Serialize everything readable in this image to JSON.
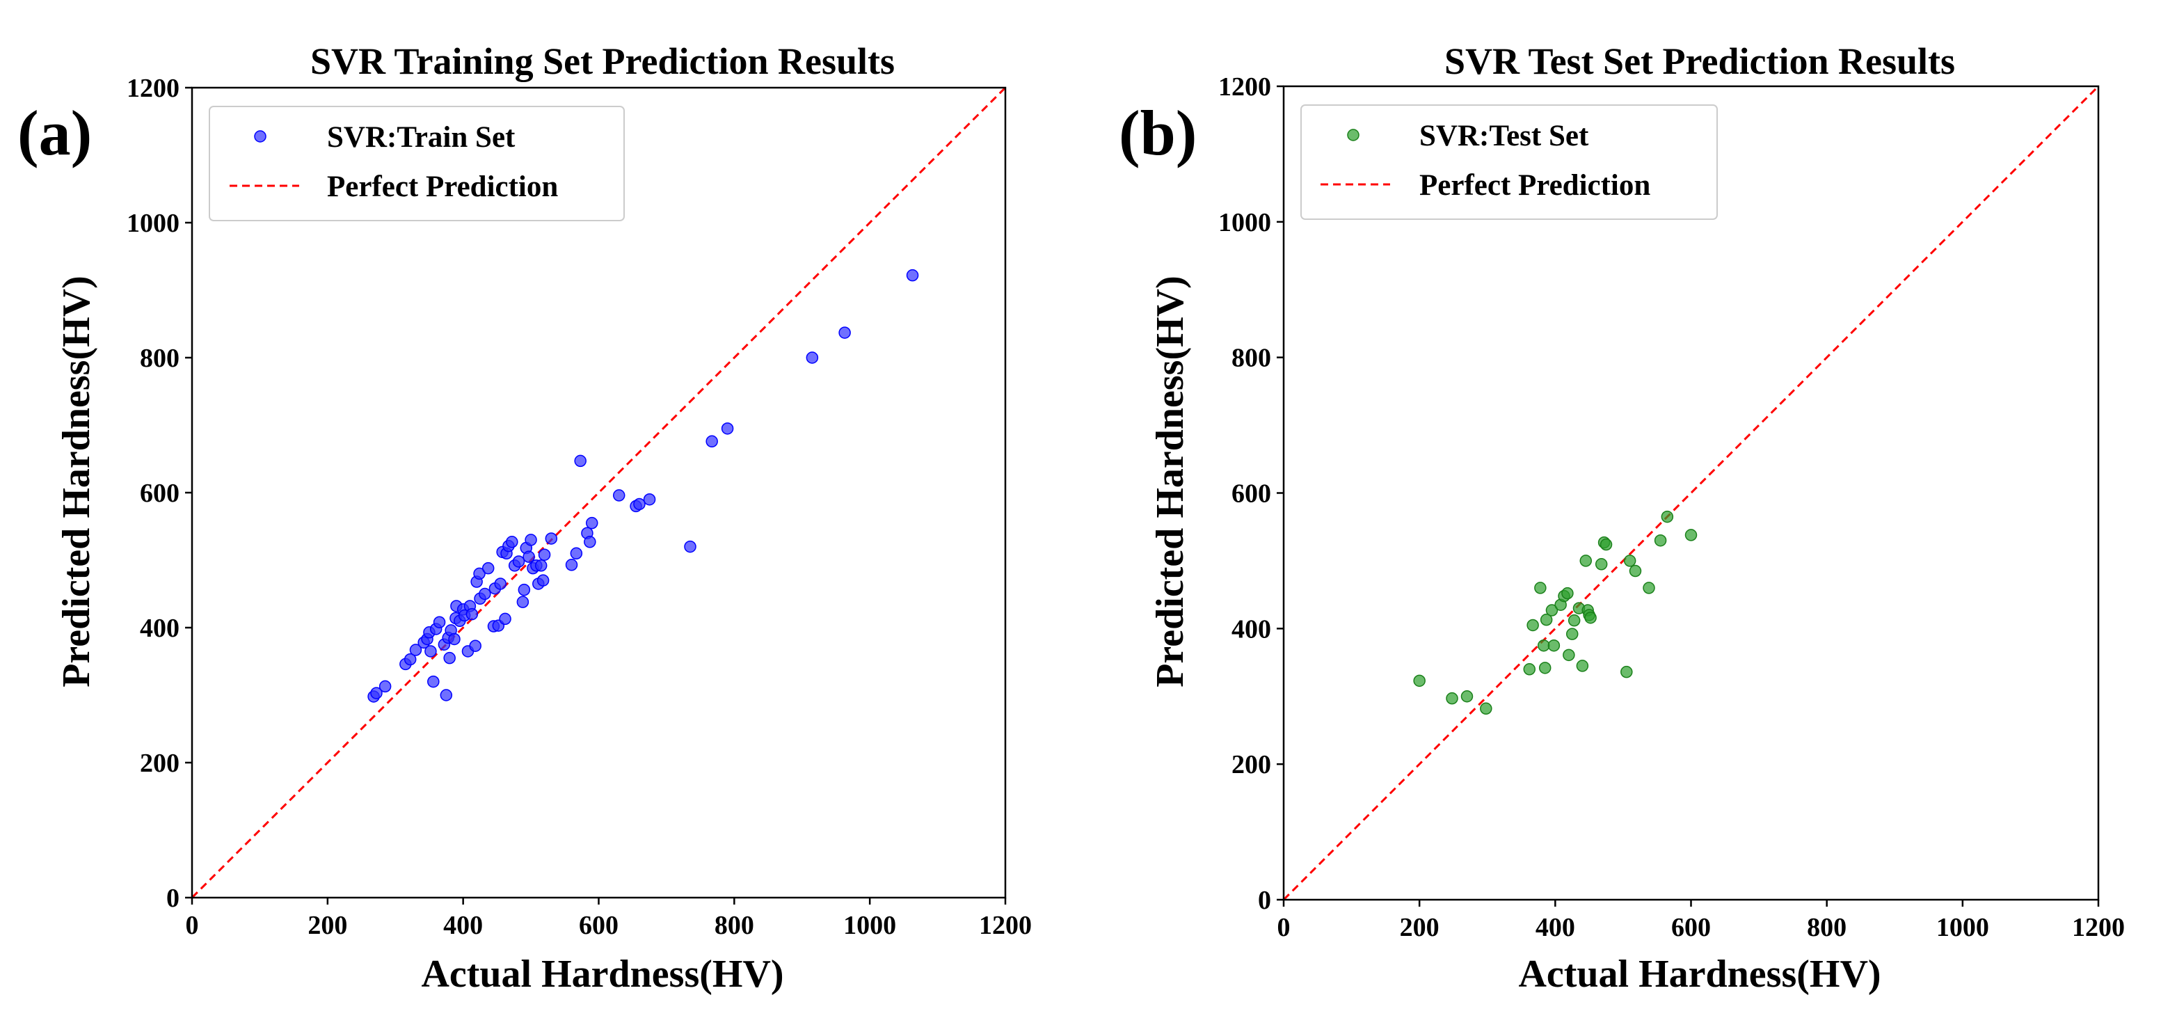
{
  "chart_data": [
    {
      "type": "scatter",
      "panel_label": "(a)",
      "title": "SVR Training Set Prediction Results",
      "xlabel": "Actual Hardness(HV)",
      "ylabel": "Predicted Hardness(HV)",
      "xlim": [
        0,
        1200
      ],
      "ylim": [
        0,
        1200
      ],
      "xticks": [
        "0",
        "200",
        "400",
        "600",
        "800",
        "1000",
        "1200"
      ],
      "yticks": [
        "0",
        "200",
        "400",
        "600",
        "800",
        "1000",
        "1200"
      ],
      "grid": false,
      "legend_position": "top-left",
      "legend": [
        "SVR:Train Set",
        "Perfect Prediction"
      ],
      "series": [
        {
          "name": "SVR:Train Set",
          "color": "#3333ff",
          "points": [
            [
              268,
              298
            ],
            [
              272,
              303
            ],
            [
              285,
              313
            ],
            [
              315,
              346
            ],
            [
              322,
              353
            ],
            [
              330,
              367
            ],
            [
              342,
              378
            ],
            [
              347,
              383
            ],
            [
              350,
              393
            ],
            [
              352,
              365
            ],
            [
              356,
              320
            ],
            [
              360,
              398
            ],
            [
              365,
              408
            ],
            [
              372,
              375
            ],
            [
              375,
              300
            ],
            [
              378,
              385
            ],
            [
              380,
              355
            ],
            [
              382,
              396
            ],
            [
              387,
              383
            ],
            [
              389,
              414
            ],
            [
              390,
              432
            ],
            [
              395,
              410
            ],
            [
              400,
              427
            ],
            [
              402,
              418
            ],
            [
              407,
              365
            ],
            [
              410,
              432
            ],
            [
              413,
              420
            ],
            [
              418,
              373
            ],
            [
              420,
              468
            ],
            [
              424,
              480
            ],
            [
              425,
              443
            ],
            [
              432,
              450
            ],
            [
              437,
              488
            ],
            [
              445,
              402
            ],
            [
              447,
              458
            ],
            [
              452,
              403
            ],
            [
              455,
              465
            ],
            [
              458,
              512
            ],
            [
              462,
              413
            ],
            [
              464,
              510
            ],
            [
              467,
              521
            ],
            [
              472,
              527
            ],
            [
              476,
              492
            ],
            [
              482,
              498
            ],
            [
              488,
              438
            ],
            [
              490,
              456
            ],
            [
              493,
              518
            ],
            [
              497,
              505
            ],
            [
              500,
              530
            ],
            [
              503,
              488
            ],
            [
              508,
              492
            ],
            [
              511,
              465
            ],
            [
              515,
              492
            ],
            [
              518,
              470
            ],
            [
              520,
              508
            ],
            [
              530,
              532
            ],
            [
              560,
              493
            ],
            [
              567,
              510
            ],
            [
              573,
              647
            ],
            [
              583,
              540
            ],
            [
              587,
              527
            ],
            [
              590,
              555
            ],
            [
              630,
              596
            ],
            [
              655,
              580
            ],
            [
              660,
              583
            ],
            [
              675,
              590
            ],
            [
              735,
              520
            ],
            [
              767,
              676
            ],
            [
              790,
              695
            ],
            [
              915,
              800
            ],
            [
              963,
              837
            ],
            [
              1063,
              922
            ]
          ]
        },
        {
          "name": "Perfect Prediction",
          "color": "#ff0000",
          "points": [
            [
              0,
              0
            ],
            [
              1200,
              1200
            ]
          ]
        }
      ]
    },
    {
      "type": "scatter",
      "panel_label": "(b)",
      "title": "SVR Test Set Prediction Results",
      "xlabel": "Actual Hardness(HV)",
      "ylabel": "Predicted Hardness(HV)",
      "xlim": [
        0,
        1200
      ],
      "ylim": [
        0,
        1200
      ],
      "xticks": [
        "0",
        "200",
        "400",
        "600",
        "800",
        "1000",
        "1200"
      ],
      "yticks": [
        "0",
        "200",
        "400",
        "600",
        "800",
        "1000",
        "1200"
      ],
      "grid": false,
      "legend_position": "top-left",
      "legend": [
        "SVR:Test Set",
        "Perfect Prediction"
      ],
      "series": [
        {
          "name": "SVR:Test Set",
          "color": "#2ca02c",
          "points": [
            [
              200,
              323
            ],
            [
              248,
              297
            ],
            [
              270,
              300
            ],
            [
              298,
              282
            ],
            [
              362,
              340
            ],
            [
              367,
              405
            ],
            [
              378,
              460
            ],
            [
              383,
              375
            ],
            [
              385,
              342
            ],
            [
              387,
              413
            ],
            [
              395,
              427
            ],
            [
              398,
              375
            ],
            [
              408,
              435
            ],
            [
              413,
              448
            ],
            [
              418,
              452
            ],
            [
              420,
              361
            ],
            [
              425,
              392
            ],
            [
              428,
              412
            ],
            [
              435,
              430
            ],
            [
              440,
              345
            ],
            [
              445,
              500
            ],
            [
              448,
              427
            ],
            [
              450,
              420
            ],
            [
              452,
              416
            ],
            [
              468,
              495
            ],
            [
              472,
              527
            ],
            [
              475,
              524
            ],
            [
              505,
              336
            ],
            [
              510,
              500
            ],
            [
              518,
              485
            ],
            [
              538,
              460
            ],
            [
              555,
              530
            ],
            [
              565,
              565
            ],
            [
              600,
              538
            ]
          ]
        },
        {
          "name": "Perfect Prediction",
          "color": "#ff0000",
          "points": [
            [
              0,
              0
            ],
            [
              1200,
              1200
            ]
          ]
        }
      ]
    }
  ]
}
